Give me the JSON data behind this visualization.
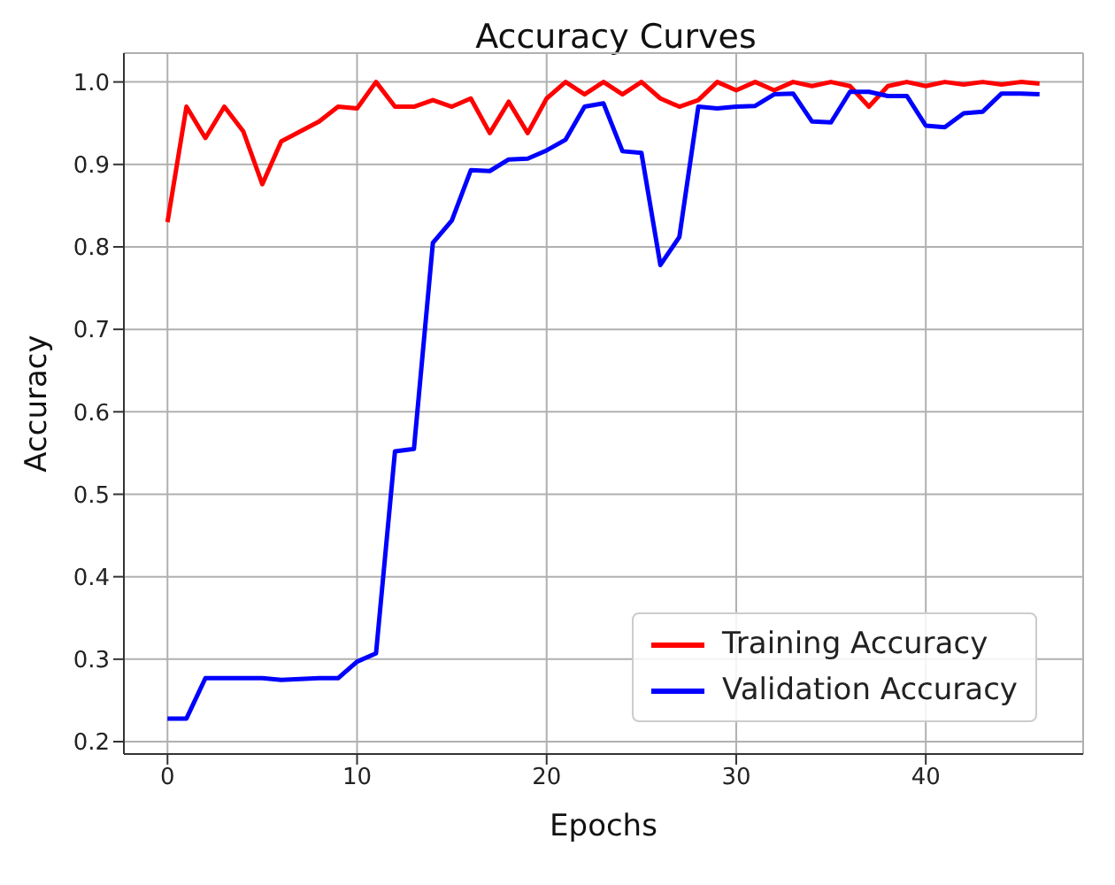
{
  "chart_data": {
    "type": "line",
    "title": "Accuracy Curves",
    "xlabel": "Epochs",
    "ylabel": "Accuracy",
    "x": [
      0,
      1,
      2,
      3,
      4,
      5,
      6,
      7,
      8,
      9,
      10,
      11,
      12,
      13,
      14,
      15,
      16,
      17,
      18,
      19,
      20,
      21,
      22,
      23,
      24,
      25,
      26,
      27,
      28,
      29,
      30,
      31,
      32,
      33,
      34,
      35,
      36,
      37,
      38,
      39,
      40,
      41,
      42,
      43,
      44,
      45,
      46
    ],
    "series": [
      {
        "name": "Training Accuracy",
        "color": "#ff0000",
        "values": [
          0.83,
          0.97,
          0.932,
          0.97,
          0.94,
          0.876,
          0.928,
          0.94,
          0.952,
          0.97,
          0.968,
          1.0,
          0.97,
          0.97,
          0.978,
          0.97,
          0.98,
          0.938,
          0.976,
          0.938,
          0.98,
          1.0,
          0.985,
          1.0,
          0.985,
          1.0,
          0.98,
          0.97,
          0.978,
          1.0,
          0.99,
          1.0,
          0.99,
          1.0,
          0.995,
          1.0,
          0.995,
          0.97,
          0.995,
          1.0,
          0.995,
          1.0,
          0.997,
          1.0,
          0.997,
          1.0,
          0.998
        ]
      },
      {
        "name": "Validation Accuracy",
        "color": "#0000ff",
        "values": [
          0.228,
          0.228,
          0.277,
          0.277,
          0.277,
          0.277,
          0.275,
          0.276,
          0.277,
          0.277,
          0.297,
          0.307,
          0.552,
          0.555,
          0.805,
          0.832,
          0.893,
          0.892,
          0.906,
          0.907,
          0.917,
          0.93,
          0.97,
          0.974,
          0.916,
          0.914,
          0.778,
          0.812,
          0.97,
          0.968,
          0.97,
          0.971,
          0.985,
          0.986,
          0.952,
          0.951,
          0.988,
          0.988,
          0.983,
          0.983,
          0.947,
          0.945,
          0.962,
          0.964,
          0.986,
          0.986,
          0.985
        ]
      }
    ],
    "xlim": [
      -2.3,
      48.3
    ],
    "xticks": [
      0,
      10,
      20,
      30,
      40
    ],
    "ylim": [
      0.185,
      1.035
    ],
    "yticks": [
      {
        "value": 0.2,
        "label": "0.2"
      },
      {
        "value": 0.3,
        "label": "0.3"
      },
      {
        "value": 0.4,
        "label": "0.4"
      },
      {
        "value": 0.5,
        "label": "0.5"
      },
      {
        "value": 0.6,
        "label": "0.6"
      },
      {
        "value": 0.7,
        "label": "0.7"
      },
      {
        "value": 0.8,
        "label": "0.8"
      },
      {
        "value": 0.9,
        "label": "0.9"
      },
      {
        "value": 1.0,
        "label": "1.0"
      }
    ],
    "grid": true,
    "legend": "bottom right",
    "marker": "none",
    "line_style": "solid"
  }
}
